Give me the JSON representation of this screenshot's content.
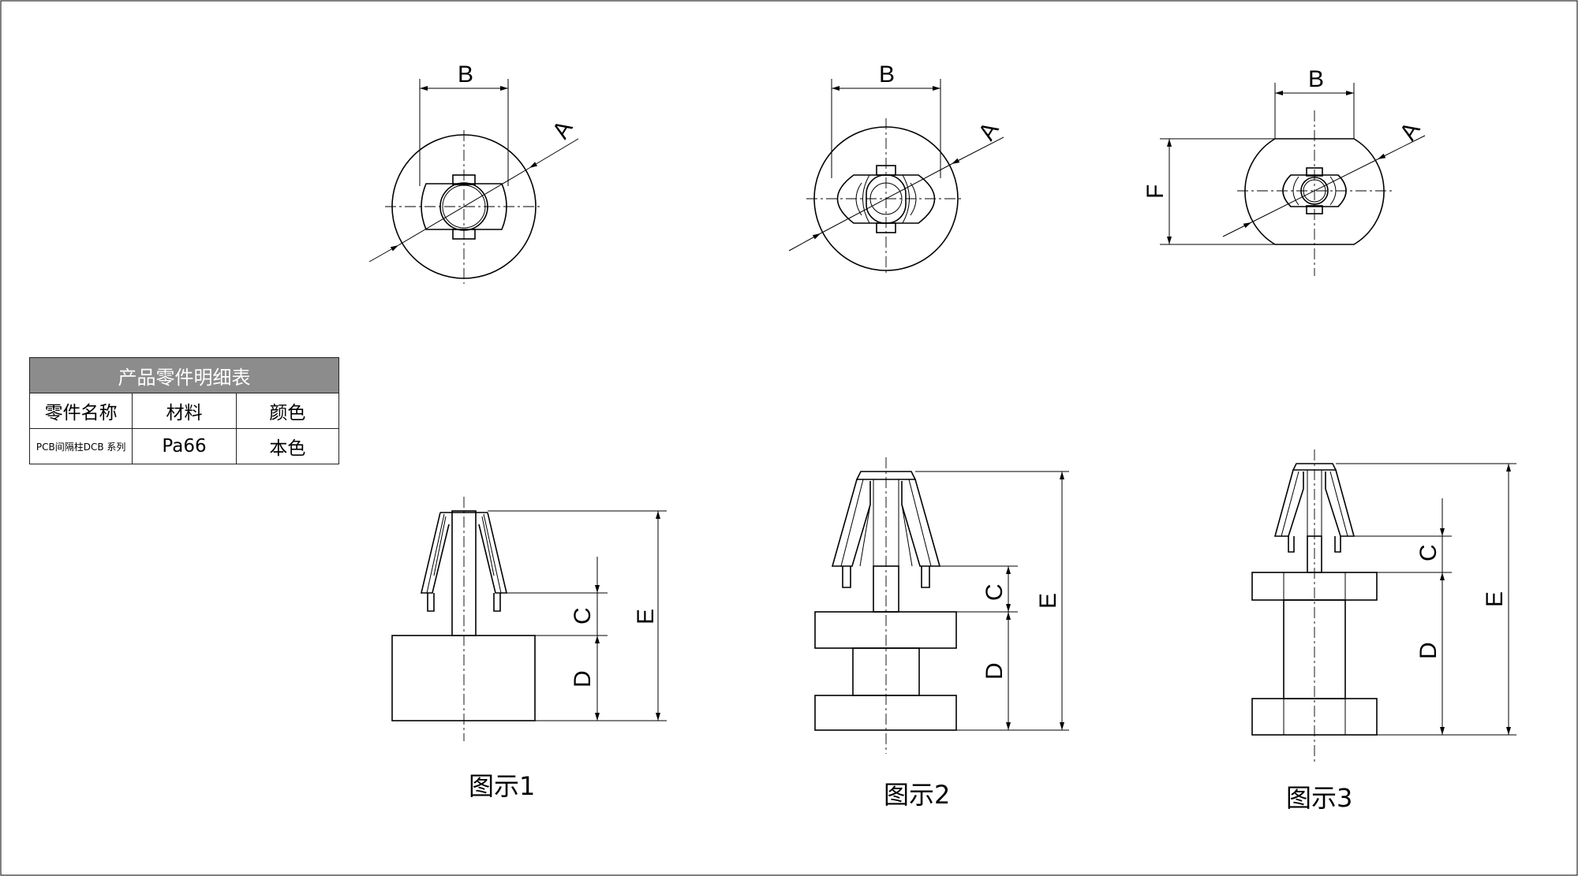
{
  "table": {
    "title": "产品零件明细表",
    "headers": [
      "零件名称",
      "材料",
      "颜色"
    ],
    "row": [
      "PCB间隔柱DCB 系列",
      "Pa66",
      "本色"
    ]
  },
  "dimension_labels": {
    "A": "A",
    "B": "B",
    "C": "C",
    "D": "D",
    "E": "E",
    "F": "F"
  },
  "figures": [
    {
      "caption": "图示1"
    },
    {
      "caption": "图示2"
    },
    {
      "caption": "图示3"
    }
  ]
}
